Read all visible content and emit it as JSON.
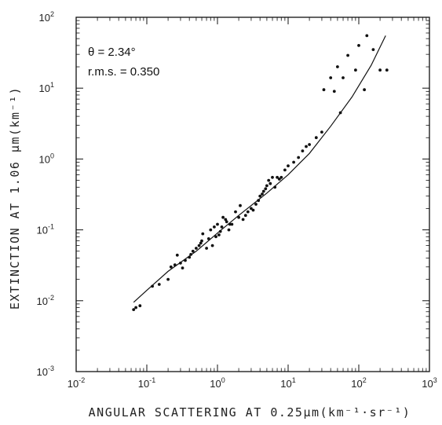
{
  "chart_data": {
    "type": "scatter",
    "title": "",
    "xlabel": "ANGULAR SCATTERING AT 0.25µm(km⁻¹·sr⁻¹)",
    "ylabel": "EXTINCTION AT 1.06 µm(km⁻¹)",
    "x_scale": "log",
    "y_scale": "log",
    "xlim": [
      0.01,
      1000
    ],
    "ylim": [
      0.001,
      100
    ],
    "x_ticks": [
      {
        "base": "10",
        "exp": "-2"
      },
      {
        "base": "10",
        "exp": "-1"
      },
      {
        "base": "10",
        "exp": "0"
      },
      {
        "base": "10",
        "exp": "1"
      },
      {
        "base": "10",
        "exp": "2"
      },
      {
        "base": "10",
        "exp": "3"
      }
    ],
    "y_ticks": [
      {
        "base": "10",
        "exp": "-3"
      },
      {
        "base": "10",
        "exp": "-2"
      },
      {
        "base": "10",
        "exp": "-1"
      },
      {
        "base": "10",
        "exp": "0"
      },
      {
        "base": "10",
        "exp": "1"
      },
      {
        "base": "10",
        "exp": "2"
      }
    ],
    "annotations": [
      "θ = 2.34°",
      "r.m.s. = 0.350"
    ],
    "grid": false,
    "legend": "none",
    "series": [
      {
        "kind": "points",
        "x": [
          0.065,
          0.07,
          0.08,
          0.12,
          0.15,
          0.2,
          0.22,
          0.25,
          0.27,
          0.3,
          0.32,
          0.35,
          0.4,
          0.42,
          0.45,
          0.5,
          0.55,
          0.58,
          0.6,
          0.62,
          0.7,
          0.75,
          0.8,
          0.85,
          0.9,
          0.95,
          1.0,
          1.05,
          1.1,
          1.15,
          1.2,
          1.3,
          1.35,
          1.45,
          1.5,
          1.6,
          1.8,
          2.0,
          2.1,
          2.3,
          2.5,
          2.7,
          3.0,
          3.2,
          3.5,
          3.8,
          4.0,
          4.3,
          4.5,
          4.8,
          5.0,
          5.3,
          5.6,
          6.0,
          6.5,
          7.0,
          7.5,
          8.0,
          9.0,
          10.0,
          12.0,
          14.0,
          16.0,
          18.0,
          20.0,
          25.0,
          30.0,
          32.0,
          40.0,
          45.0,
          50.0,
          55.0,
          60.0,
          70.0,
          90.0,
          100.0,
          120.0,
          130.0,
          160.0,
          200.0,
          250.0
        ],
        "y": [
          0.0075,
          0.008,
          0.0085,
          0.016,
          0.017,
          0.02,
          0.03,
          0.032,
          0.044,
          0.034,
          0.029,
          0.037,
          0.041,
          0.045,
          0.05,
          0.055,
          0.06,
          0.065,
          0.07,
          0.088,
          0.055,
          0.075,
          0.1,
          0.06,
          0.11,
          0.08,
          0.12,
          0.085,
          0.095,
          0.11,
          0.15,
          0.14,
          0.13,
          0.1,
          0.12,
          0.12,
          0.18,
          0.15,
          0.22,
          0.14,
          0.16,
          0.18,
          0.2,
          0.19,
          0.23,
          0.26,
          0.3,
          0.32,
          0.35,
          0.38,
          0.42,
          0.5,
          0.45,
          0.55,
          0.4,
          0.55,
          0.52,
          0.55,
          0.7,
          0.8,
          0.9,
          1.05,
          1.3,
          1.5,
          1.6,
          2.0,
          2.4,
          9.5,
          14.0,
          9.0,
          20.0,
          4.5,
          14.0,
          29.0,
          18.0,
          40.0,
          9.5,
          55.0,
          35.0,
          18.0,
          18.0
        ]
      },
      {
        "kind": "fit-line",
        "x": [
          0.065,
          0.1,
          0.2,
          0.5,
          1,
          2,
          5,
          10,
          20,
          40,
          80,
          150,
          240
        ],
        "y": [
          0.0095,
          0.014,
          0.026,
          0.05,
          0.09,
          0.16,
          0.33,
          0.6,
          1.2,
          2.9,
          7.5,
          21.0,
          55.0
        ]
      }
    ]
  }
}
